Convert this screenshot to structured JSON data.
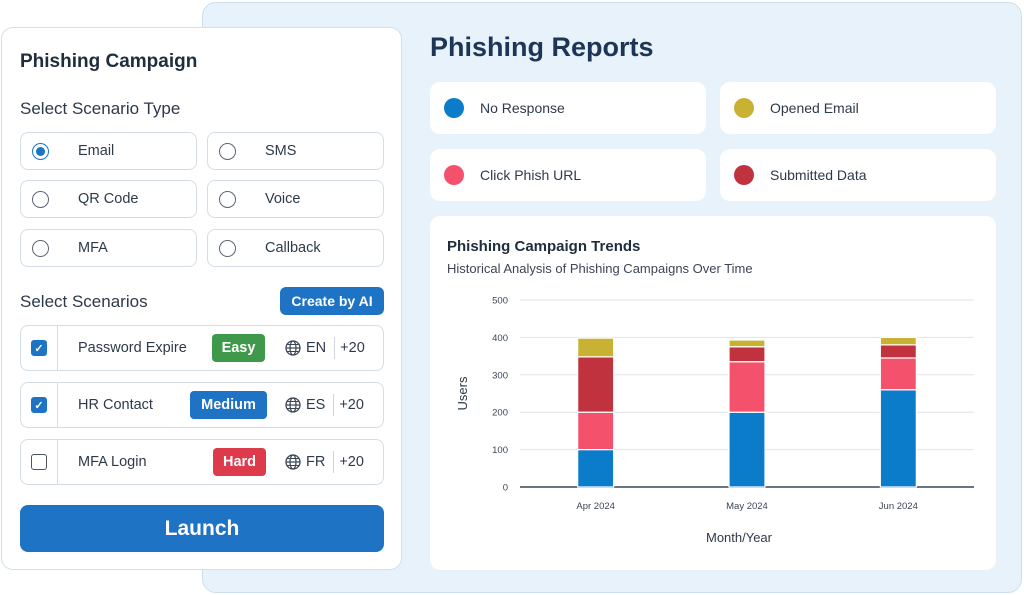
{
  "campaign": {
    "title": "Phishing Campaign",
    "scenario_type_label": "Select Scenario Type",
    "scenario_types": [
      {
        "label": "Email",
        "selected": true
      },
      {
        "label": "SMS",
        "selected": false
      },
      {
        "label": "QR Code",
        "selected": false
      },
      {
        "label": "Voice",
        "selected": false
      },
      {
        "label": "MFA",
        "selected": false
      },
      {
        "label": "Callback",
        "selected": false
      }
    ],
    "scenarios_label": "Select Scenarios",
    "create_ai_label": "Create by AI",
    "scenarios": [
      {
        "name": "Password Expire",
        "checked": true,
        "difficulty": "Easy",
        "difficulty_color": "#3e9a4a",
        "lang": "EN",
        "more": "+20"
      },
      {
        "name": "HR Contact",
        "checked": true,
        "difficulty": "Medium",
        "difficulty_color": "#1f73c4",
        "lang": "ES",
        "more": "+20"
      },
      {
        "name": "MFA Login",
        "checked": false,
        "difficulty": "Hard",
        "difficulty_color": "#dd3b4b",
        "lang": "FR",
        "more": "+20"
      }
    ],
    "launch_label": "Launch"
  },
  "reports": {
    "title": "Phishing Reports",
    "legend": [
      {
        "label": "No Response",
        "color": "#0a7cc9",
        "icon": "dot-icon"
      },
      {
        "label": "Opened Email",
        "color": "#c9b233",
        "icon": "dot-icon"
      },
      {
        "label": "Click Phish URL",
        "color": "#f4516c",
        "icon": "dot-icon"
      },
      {
        "label": "Submitted Data",
        "color": "#c0323e",
        "icon": "dot-icon"
      }
    ]
  },
  "chart_data": {
    "type": "bar",
    "stacked": true,
    "title": "Phishing Campaign Trends",
    "subtitle": "Historical Analysis of Phishing Campaigns Over Time",
    "xlabel": "Month/Year",
    "ylabel": "Users",
    "ylim": [
      0,
      500
    ],
    "yticks": [
      0,
      100,
      200,
      300,
      400,
      500
    ],
    "grid": true,
    "categories": [
      "Apr 2024",
      "May 2024",
      "Jun 2024"
    ],
    "series": [
      {
        "name": "No Response",
        "color": "#0a7cc9",
        "values": [
          100,
          200,
          260
        ]
      },
      {
        "name": "Click Phish URL",
        "color": "#f4516c",
        "values": [
          100,
          135,
          85
        ]
      },
      {
        "name": "Submitted Data",
        "color": "#c0323e",
        "values": [
          148,
          40,
          35
        ]
      },
      {
        "name": "Opened Email",
        "color": "#c9b233",
        "values": [
          50,
          18,
          20
        ]
      }
    ]
  }
}
